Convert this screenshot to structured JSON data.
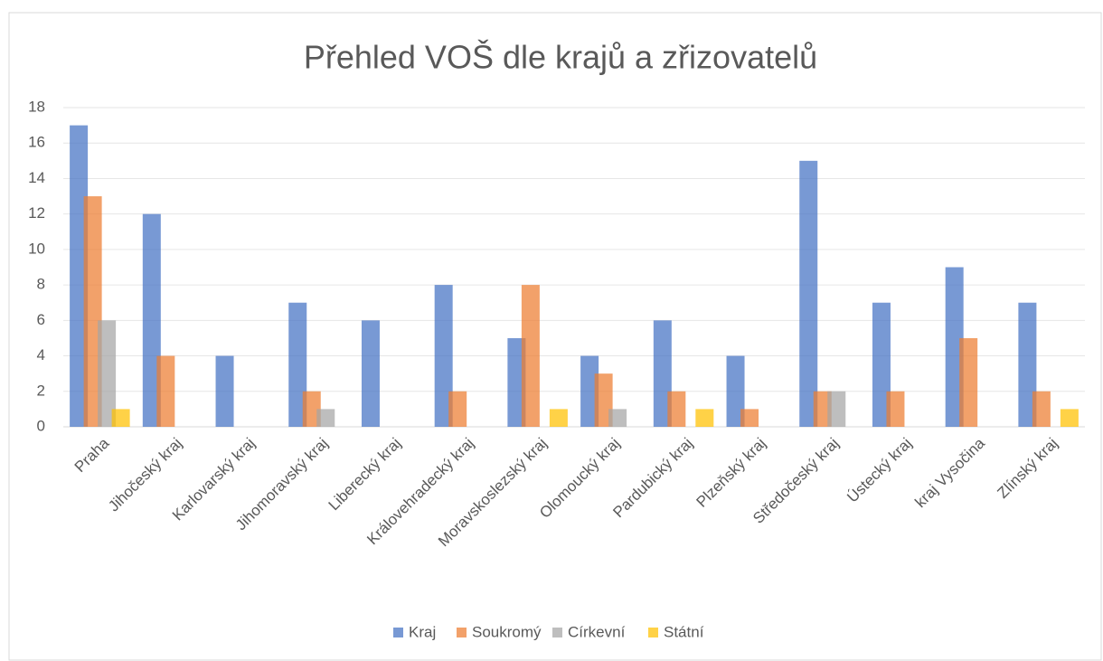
{
  "chart_data": {
    "type": "bar",
    "title": "Přehled VOŠ dle krajů a zřizovatelů",
    "categories": [
      "Praha",
      "Jihočeský kraj",
      "Karlovarský kraj",
      "Jihomoravský kraj",
      "Liberecký kraj",
      "Královehradecký kraj",
      "Moravskoslezský kraj",
      "Olomoucký kraj",
      "Pardubický kraj",
      "Plzeňský kraj",
      "Středočeský kraj",
      "Ústecký kraj",
      "kraj Vysočina",
      "Zlínský kraj"
    ],
    "series": [
      {
        "name": "Kraj",
        "color": "#4472c4",
        "values": [
          17,
          12,
          4,
          7,
          6,
          8,
          5,
          4,
          6,
          4,
          15,
          7,
          9,
          7
        ]
      },
      {
        "name": "Soukromý",
        "color": "#ed7d31",
        "values": [
          13,
          4,
          0,
          2,
          0,
          2,
          8,
          3,
          2,
          1,
          2,
          2,
          5,
          2
        ]
      },
      {
        "name": "Církevní",
        "color": "#a5a5a5",
        "values": [
          6,
          0,
          0,
          1,
          0,
          0,
          0,
          1,
          0,
          0,
          2,
          0,
          0,
          0
        ]
      },
      {
        "name": "Státní",
        "color": "#ffc000",
        "values": [
          1,
          0,
          0,
          0,
          0,
          0,
          1,
          0,
          1,
          0,
          0,
          0,
          0,
          1
        ]
      }
    ],
    "ylim": [
      0,
      18
    ],
    "yticks": [
      0,
      2,
      4,
      6,
      8,
      10,
      12,
      14,
      16,
      18
    ],
    "grid": true,
    "legend": "bottom"
  }
}
